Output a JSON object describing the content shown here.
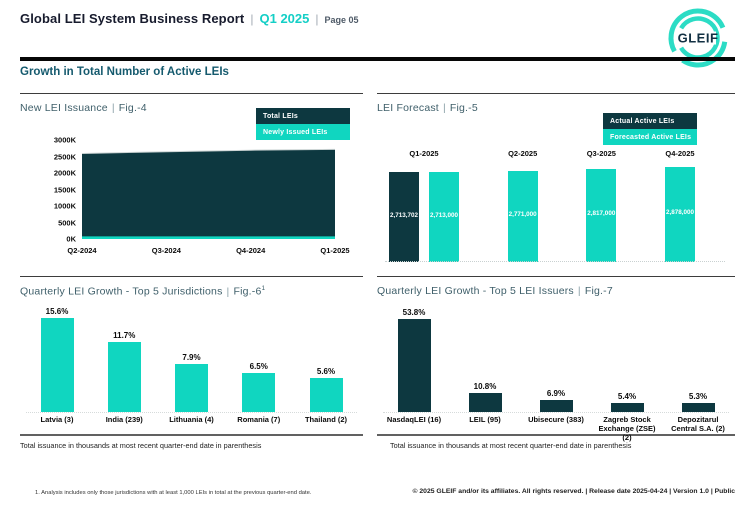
{
  "ui": {
    "header": {
      "title": "Global LEI System Business Report",
      "sep": "|",
      "period": "Q1 2025",
      "page_label": "Page 05",
      "logo_text": "GLEIF"
    },
    "section_title": "Growth in Total Number of Active LEIs",
    "panels": [
      {
        "title": "New LEI Issuance",
        "sep": "|",
        "fig": "Fig.-4"
      },
      {
        "title": "LEI Forecast",
        "sep": "|",
        "fig": "Fig.-5"
      },
      {
        "title": "Quarterly LEI Growth - Top 5 Jurisdictions",
        "sep": "|",
        "fig": "Fig.-6",
        "fig_sup": "1"
      },
      {
        "title": "Quarterly LEI Growth - Top 5 LEI Issuers",
        "sep": "|",
        "fig": "Fig.-7"
      }
    ],
    "footnotes": {
      "left": "Total issuance in thousands at most recent quarter-end date in parenthesis",
      "right": "Total issuance in thousands at most recent quarter-end date in parenthesis"
    },
    "footer": {
      "note": "1. Analysis includes only those jurisdictions with at least 1,000 LEIs in total at the previous quarter-end date.",
      "rights": "© 2025 GLEIF and/or its affiliates. All rights reserved. | Release date 2025-04-24 | Version 1.0 | Public"
    },
    "colors": {
      "teal": "#10d6c0",
      "dark_teal": "#0d3840",
      "accent_text": "#14cfc6",
      "logo_ring": "#2cdcc5",
      "logo_text": "#123043"
    }
  },
  "chart_data": [
    {
      "id": "new-lei-issuance",
      "type": "area",
      "title": "New LEI Issuance | Fig.-4",
      "x": [
        "Q2-2024",
        "Q3-2024",
        "Q4-2024",
        "Q1-2025"
      ],
      "yticks": [
        "0K",
        "500K",
        "1000K",
        "1500K",
        "2000K",
        "2500K",
        "3000K"
      ],
      "ylim_thousands": [
        0,
        3000
      ],
      "legend_position": "top-right",
      "series": [
        {
          "name": "Total LEIs",
          "color": "#0d3840",
          "values_thousands_est": [
            2590,
            2645,
            2690,
            2714
          ]
        },
        {
          "name": "Newly Issued LEIs",
          "color": "#10d6c0",
          "values_thousands_est": [
            60,
            55,
            50,
            46
          ]
        }
      ]
    },
    {
      "id": "lei-forecast",
      "type": "bar",
      "title": "LEI Forecast | Fig.-5",
      "categories": [
        "Q1-2025",
        "Q2-2025",
        "Q3-2025",
        "Q4-2025"
      ],
      "legend_position": "top-right",
      "data_labels": true,
      "series": [
        {
          "name": "Actual Active LEIs",
          "color": "#0d3840",
          "values": [
            2713702,
            null,
            null,
            null
          ]
        },
        {
          "name": "Forecasted Active LEIs",
          "color": "#10d6c0",
          "values": [
            2713000,
            2771000,
            2817000,
            2878000
          ]
        }
      ]
    },
    {
      "id": "top5-jurisdictions",
      "type": "bar",
      "title": "Quarterly LEI Growth - Top 5 Jurisdictions | Fig.-6¹",
      "categories": [
        "Latvia (3)",
        "India (239)",
        "Lithuania (4)",
        "Romania (7)",
        "Thailand (2)"
      ],
      "values": [
        15.6,
        11.7,
        7.9,
        6.5,
        5.6
      ],
      "unit": "%",
      "bar_color": "#10d6c0",
      "ylim": [
        0,
        16
      ]
    },
    {
      "id": "top5-lei-issuers",
      "type": "bar",
      "title": "Quarterly LEI Growth - Top 5 LEI Issuers | Fig.-7",
      "categories": [
        "NasdaqLEI (16)",
        "LEIL (95)",
        "Ubisecure (383)",
        "Zagreb Stock Exchange (ZSE) (2)",
        "Depozitarul Central S.A. (2)"
      ],
      "values": [
        53.8,
        10.8,
        6.9,
        5.4,
        5.3
      ],
      "unit": "%",
      "bar_color": "#0d3840",
      "ylim": [
        0,
        56
      ]
    }
  ]
}
